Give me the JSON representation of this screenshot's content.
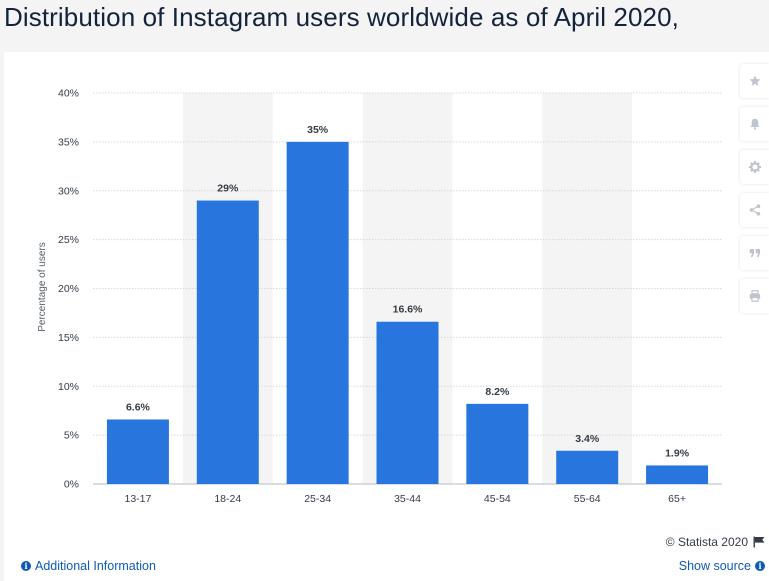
{
  "page": {
    "title": "Distribution of Instagram users worldwide as of April 2020,"
  },
  "toolbar": {
    "icons": [
      "star-icon",
      "bell-icon",
      "gear-icon",
      "share-icon",
      "quote-icon",
      "print-icon"
    ]
  },
  "footer": {
    "credit": "© Statista 2020",
    "additional_info": "Additional Information",
    "show_source": "Show source"
  },
  "colors": {
    "bar": "#2876dd",
    "band": "#f4f4f4",
    "grid": "#d5d8dc",
    "text": "#333c46",
    "link": "#0f5ab4"
  },
  "chart_data": {
    "type": "bar",
    "categories": [
      "13-17",
      "18-24",
      "25-34",
      "35-44",
      "45-54",
      "55-64",
      "65+"
    ],
    "values": [
      6.6,
      29,
      35,
      16.6,
      8.2,
      3.4,
      1.9
    ],
    "data_labels": [
      "6.6%",
      "29%",
      "35%",
      "16.6%",
      "8.2%",
      "3.4%",
      "1.9%"
    ],
    "ylabel": "Percentage of users",
    "ylim": [
      0,
      40
    ],
    "yticks": [
      0,
      5,
      10,
      15,
      20,
      25,
      30,
      35,
      40
    ],
    "ytick_labels": [
      "0%",
      "5%",
      "10%",
      "15%",
      "20%",
      "25%",
      "30%",
      "35%",
      "40%"
    ],
    "grid": true,
    "alternating_bands": true
  }
}
